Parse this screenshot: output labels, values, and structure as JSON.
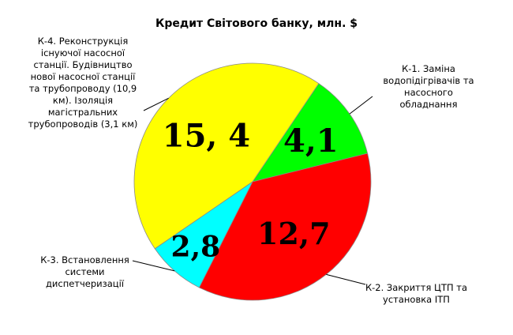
{
  "chart_data": {
    "type": "pie",
    "title": "Кредит Світового банку, млн. $",
    "slices": [
      {
        "label": "К-1. Заміна водопідігрівачів та насосного обладнання",
        "value": 4.1,
        "value_text": "4,1",
        "color": "#00ff00"
      },
      {
        "label": "К-2. Закриття ЦТП та установка ІТП",
        "value": 12.7,
        "value_text": "12,7",
        "color": "#ff0000"
      },
      {
        "label": "К-3. Встановлення системи диспетчеризації",
        "value": 2.8,
        "value_text": "2,8",
        "color": "#00ffff"
      },
      {
        "label": "К-4. Реконструкція існуючої насосної станції. Будівництво нової насосної станції та трубопроводу (10,9 км). Ізоляція магістральних трубопроводів (3,1 км)",
        "value": 15.4,
        "value_text": "15, 4",
        "color": "#ffff00"
      }
    ],
    "legend": "none"
  }
}
